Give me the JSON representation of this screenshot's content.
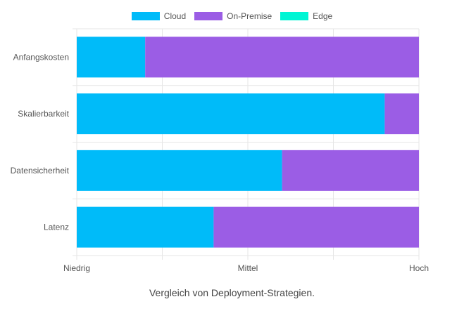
{
  "chart_data": {
    "type": "bar",
    "orientation": "horizontal",
    "stacked": true,
    "categories": [
      "Anfangskosten",
      "Skalierbarkeit",
      "Datensicherheit",
      "Latenz"
    ],
    "series": [
      {
        "name": "Cloud",
        "color": "#00bbf9",
        "values": [
          0.2,
          0.9,
          0.6,
          0.4
        ]
      },
      {
        "name": "On-Premise",
        "color": "#9b5de5",
        "values": [
          0.8,
          0.1,
          0.4,
          0.6
        ]
      },
      {
        "name": "Edge",
        "color": "#00f5d4",
        "values": [
          0,
          0,
          0,
          0
        ]
      }
    ],
    "xlim": [
      0,
      1
    ],
    "x_ticks": [
      {
        "value": 0,
        "label": "Niedrig"
      },
      {
        "value": 0.5,
        "label": "Mittel"
      },
      {
        "value": 1,
        "label": "Hoch"
      }
    ],
    "grid": true,
    "legend_position": "top-center"
  },
  "caption": "Vergleich von Deployment-Strategien."
}
